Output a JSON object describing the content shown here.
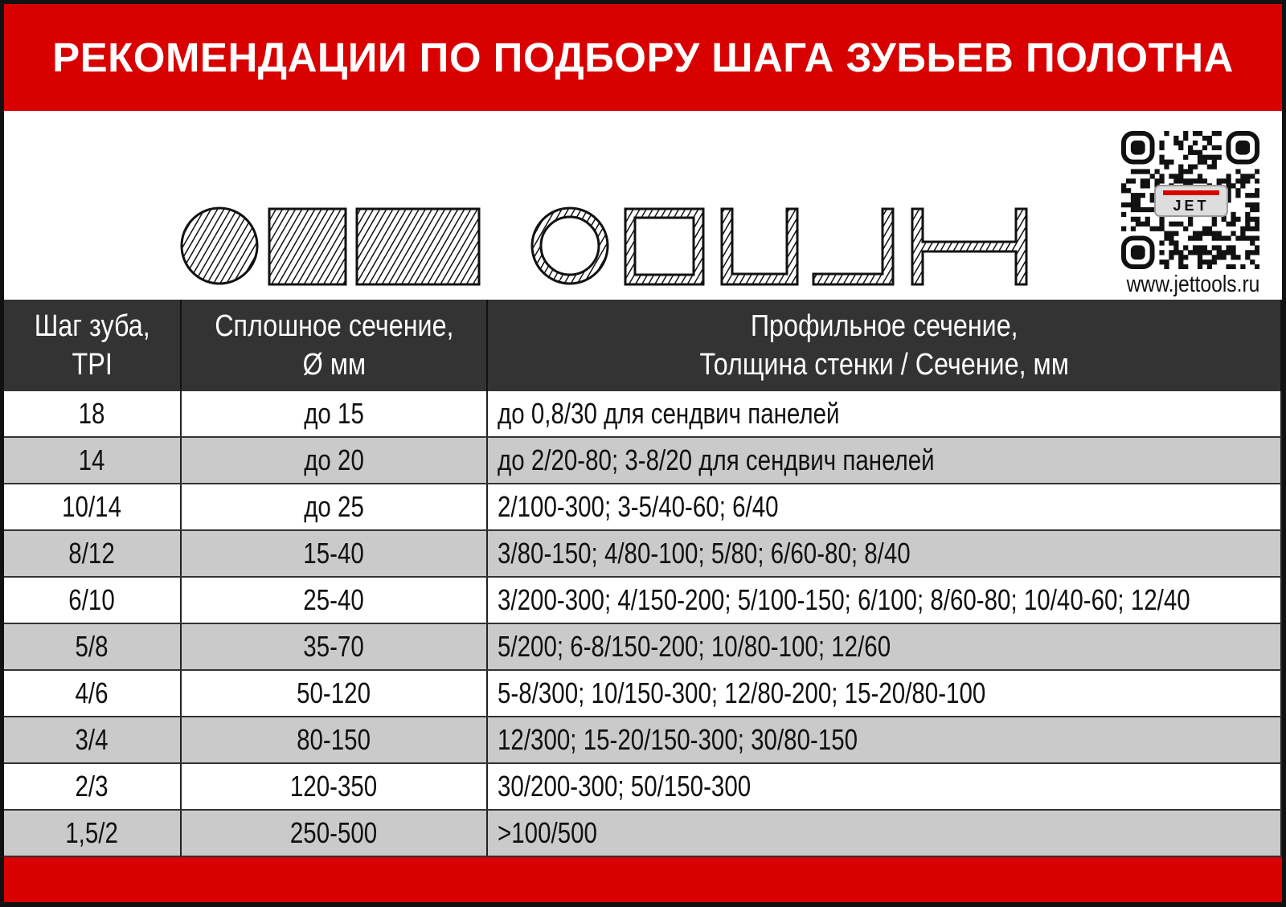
{
  "title": "РЕКОМЕНДАЦИИ ПО ПОДБОРУ ШАГА ЗУБЬЕВ ПОЛОТНА",
  "brand": {
    "logo_text": "JET",
    "url": "www.jettools.ru",
    "accent": "#d90000"
  },
  "shapes": [
    "round-bar",
    "square-bar",
    "rectangular-bar",
    "round-tube",
    "square-tube",
    "channel",
    "angle",
    "i-beam"
  ],
  "table": {
    "headers": [
      {
        "line1": "Шаг зуба,",
        "line2": "TPI"
      },
      {
        "line1": "Сплошное сечение,",
        "line2": "Ø мм"
      },
      {
        "line1": "Профильное сечение,",
        "line2": "Толщина стенки / Сечение, мм"
      }
    ],
    "rows": [
      {
        "tpi": "18",
        "solid": "до 15",
        "profile": "до 0,8/30 для сендвич панелей"
      },
      {
        "tpi": "14",
        "solid": "до 20",
        "profile": "до 2/20-80; 3-8/20 для сендвич панелей"
      },
      {
        "tpi": "10/14",
        "solid": "до 25",
        "profile": "2/100-300; 3-5/40-60;  6/40"
      },
      {
        "tpi": "8/12",
        "solid": "15-40",
        "profile": "3/80-150; 4/80-100; 5/80; 6/60-80; 8/40"
      },
      {
        "tpi": "6/10",
        "solid": "25-40",
        "profile": "3/200-300; 4/150-200; 5/100-150; 6/100; 8/60-80; 10/40-60; 12/40"
      },
      {
        "tpi": "5/8",
        "solid": "35-70",
        "profile": "5/200; 6-8/150-200; 10/80-100; 12/60"
      },
      {
        "tpi": "4/6",
        "solid": "50-120",
        "profile": "5-8/300; 10/150-300; 12/80-200; 15-20/80-100"
      },
      {
        "tpi": "3/4",
        "solid": "80-150",
        "profile": "12/300; 15-20/150-300; 30/80-150"
      },
      {
        "tpi": "2/3",
        "solid": "120-350",
        "profile": "30/200-300; 50/150-300"
      },
      {
        "tpi": "1,5/2",
        "solid": "250-500",
        "profile": ">100/500"
      }
    ]
  }
}
